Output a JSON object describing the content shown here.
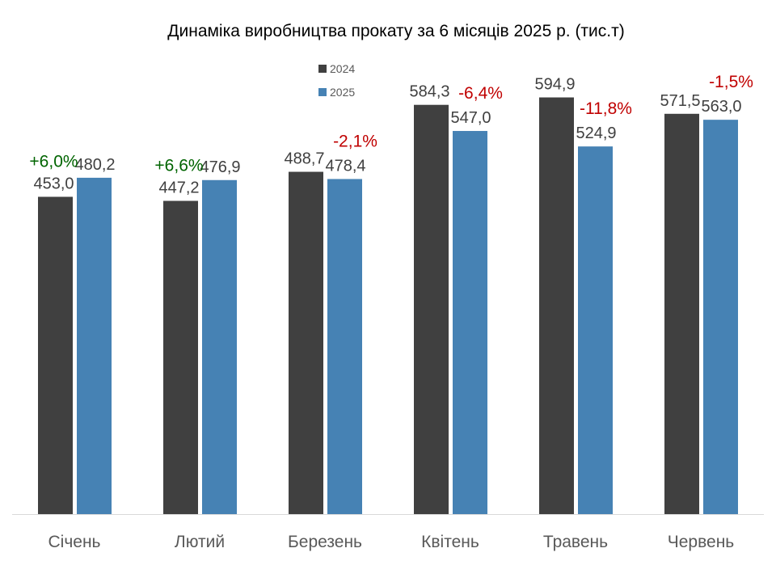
{
  "chart_data": {
    "type": "bar",
    "title": "Динаміка виробництва прокату за 6 місяців 2025 р. (тис.т)",
    "xlabel": "",
    "ylabel": "",
    "ylim": [
      0,
      600
    ],
    "grid": false,
    "legend_position": "top-center",
    "categories": [
      "Січень",
      "Лютий",
      "Березень",
      "Квітень",
      "Травень",
      "Червень"
    ],
    "series": [
      {
        "name": "2024",
        "color": "#404040",
        "values": [
          453.0,
          447.2,
          488.7,
          584.3,
          594.9,
          571.5
        ],
        "labels": [
          "453,0",
          "447,2",
          "488,7",
          "584,3",
          "594,9",
          "571,5"
        ]
      },
      {
        "name": "2025",
        "color": "#4682B4",
        "values": [
          480.2,
          476.9,
          478.4,
          547.0,
          524.9,
          563.0
        ],
        "labels": [
          "480,2",
          "476,9",
          "478,4",
          "547,0",
          "524,9",
          "563,0"
        ]
      }
    ],
    "annotations": [
      {
        "category": "Січень",
        "text": "+6,0%",
        "trend": "up",
        "color": "#006400"
      },
      {
        "category": "Лютий",
        "text": "+6,6%",
        "trend": "up",
        "color": "#006400"
      },
      {
        "category": "Березень",
        "text": "-2,1%",
        "trend": "down",
        "color": "#C00000"
      },
      {
        "category": "Квітень",
        "text": "-6,4%",
        "trend": "down",
        "color": "#C00000"
      },
      {
        "category": "Травень",
        "text": "-11,8%",
        "trend": "down",
        "color": "#C00000"
      },
      {
        "category": "Червень",
        "text": "-1,5%",
        "trend": "down",
        "color": "#C00000"
      }
    ]
  }
}
